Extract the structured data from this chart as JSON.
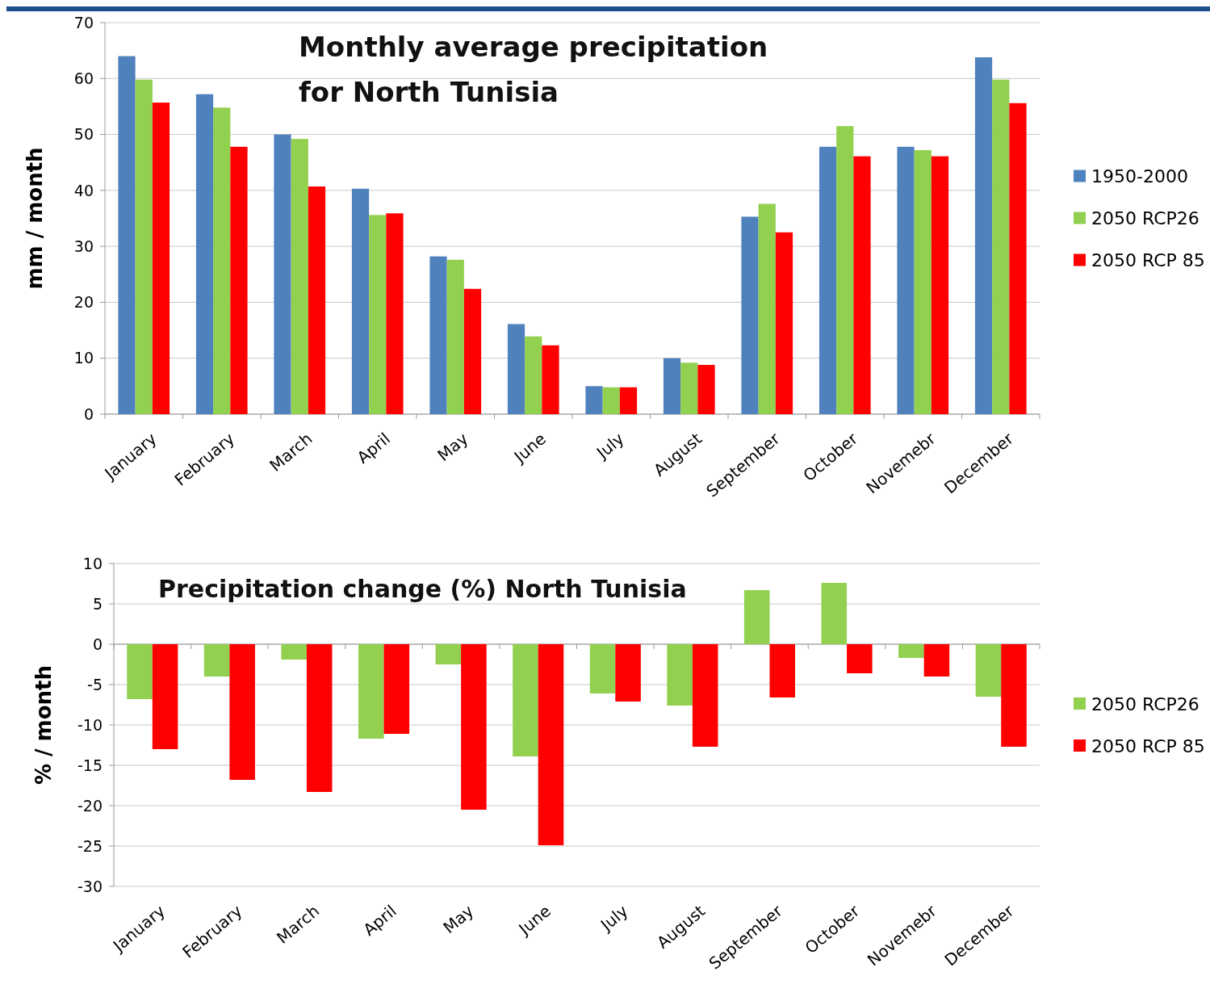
{
  "chart_data": [
    {
      "type": "bar",
      "title": "Monthly average precipitation\nfor North Tunisia",
      "ylabel": "mm / month",
      "categories": [
        "January",
        "February",
        "March",
        "April",
        "May",
        "June",
        "July",
        "August",
        "September",
        "October",
        "Novemebr",
        "December"
      ],
      "series": [
        {
          "name": "1950-2000",
          "color": "#4f81bd",
          "values": [
            64.0,
            57.2,
            50.0,
            40.3,
            28.2,
            16.1,
            5.0,
            10.0,
            35.3,
            47.8,
            47.8,
            63.8
          ]
        },
        {
          "name": "2050 RCP26",
          "color": "#92d050",
          "values": [
            59.8,
            54.8,
            49.2,
            35.6,
            27.6,
            13.9,
            4.8,
            9.2,
            37.6,
            51.5,
            47.2,
            59.8
          ]
        },
        {
          "name": "2050 RCP 85",
          "color": "#ff0000",
          "values": [
            55.7,
            47.8,
            40.7,
            35.9,
            22.4,
            12.3,
            4.8,
            8.8,
            32.5,
            46.1,
            46.1,
            55.6
          ]
        }
      ],
      "ylim": [
        0,
        70
      ],
      "yticks": [
        0,
        10,
        20,
        30,
        40,
        50,
        60,
        70
      ],
      "grid": "y",
      "legend": "right"
    },
    {
      "type": "bar",
      "title": "Precipitation change (%)  North Tunisia",
      "ylabel": "% / month",
      "categories": [
        "January",
        "February",
        "March",
        "April",
        "May",
        "June",
        "July",
        "August",
        "September",
        "October",
        "Novemebr",
        "December"
      ],
      "series": [
        {
          "name": "2050 RCP26",
          "color": "#92d050",
          "values": [
            -6.8,
            -4.0,
            -1.9,
            -11.7,
            -2.5,
            -13.9,
            -6.1,
            -7.6,
            6.7,
            7.6,
            -1.7,
            -6.5
          ]
        },
        {
          "name": "2050 RCP 85",
          "color": "#ff0000",
          "values": [
            -13.0,
            -16.8,
            -18.3,
            -11.1,
            -20.5,
            -24.9,
            -7.1,
            -12.7,
            -6.6,
            -3.6,
            -4.0,
            -12.7
          ]
        }
      ],
      "ylim": [
        -30,
        10
      ],
      "yticks": [
        -30,
        -25,
        -20,
        -15,
        -10,
        -5,
        0,
        5,
        10
      ],
      "grid": "y",
      "legend": "right"
    }
  ]
}
